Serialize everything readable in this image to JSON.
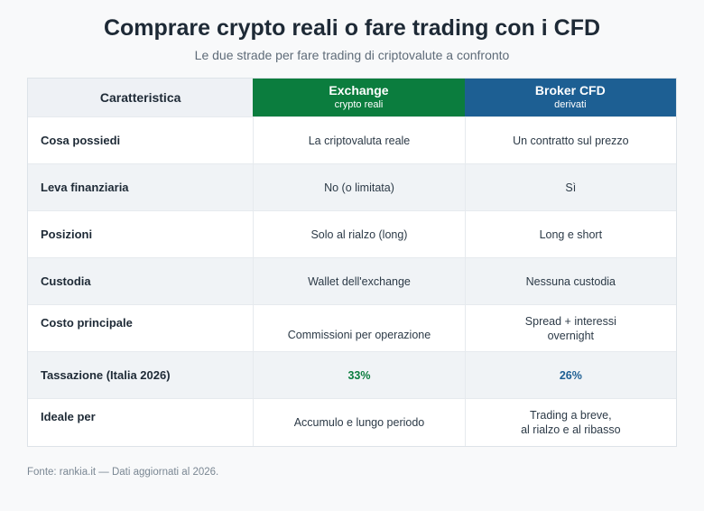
{
  "title": "Comprare crypto reali o fare trading con i CFD",
  "subtitle": "Le due strade per fare trading di criptovalute a confronto",
  "table": {
    "header": {
      "feature": "Caratteristica",
      "exchange": {
        "name": "Exchange",
        "sub": "crypto reali",
        "color": "#0b7d3e"
      },
      "broker": {
        "name": "Broker CFD",
        "sub": "derivati",
        "color": "#1d5f93"
      }
    },
    "rows": [
      {
        "label": "Cosa possiedi",
        "exchange": "La criptovaluta reale",
        "broker": "Un contratto sul prezzo"
      },
      {
        "label": "Leva finanziaria",
        "exchange": "No (o limitata)",
        "broker": "Sì"
      },
      {
        "label": "Posizioni",
        "exchange": "Solo al rialzo (long)",
        "broker": "Long e short"
      },
      {
        "label": "Custodia",
        "exchange": "Wallet dell'exchange",
        "broker": "Nessuna custodia"
      },
      {
        "label": "Costo principale",
        "exchange": "Commissioni per operazione",
        "broker": "Spread + interessi\novernight"
      },
      {
        "label": "Tassazione (Italia 2026)",
        "exchange": "33%",
        "broker": "26%"
      },
      {
        "label": "Ideale per",
        "exchange": "Accumulo e lungo periodo",
        "broker": "Trading a breve,\nal rialzo e al ribasso"
      }
    ]
  },
  "source": "Fonte: rankia.it — Dati aggiornati al 2026."
}
